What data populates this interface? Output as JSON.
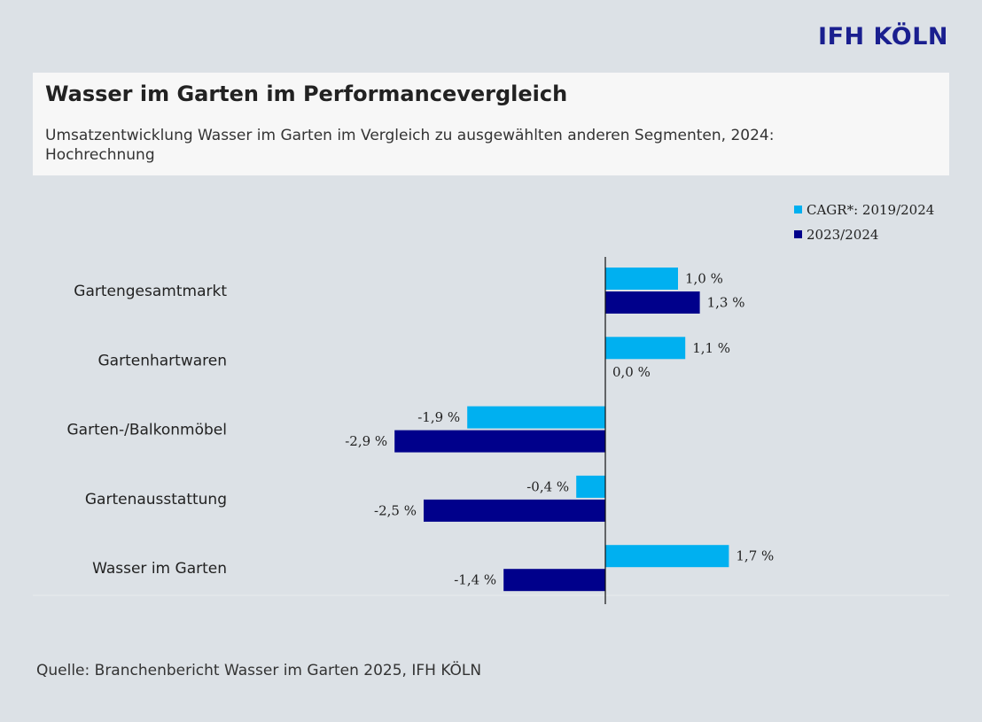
{
  "logo": "IFH KÖLN",
  "header": {
    "title": "Wasser im Garten im Performancevergleich",
    "subtitle": "Umsatzentwicklung Wasser im Garten im Vergleich zu ausgewählten anderen Segmenten, 2024: Hochrechnung"
  },
  "source": "Quelle: Branchenbericht Wasser im Garten 2025, IFH KÖLN",
  "chart_data": {
    "type": "bar",
    "orientation": "horizontal",
    "categories": [
      "Gartengesamtmarkt",
      "Gartenhartwaren",
      "Garten-/Balkonmöbel",
      "Gartenausstattung",
      "Wasser im Garten"
    ],
    "series": [
      {
        "name": "CAGR*: 2019/2024",
        "color": "#00b0f0",
        "values": [
          1.0,
          1.1,
          -1.9,
          -0.4,
          1.7
        ],
        "labels": [
          "1,0 %",
          "1,1 %",
          "-1,9 %",
          "-0,4 %",
          "1,7 %"
        ]
      },
      {
        "name": "2023/2024",
        "color": "#00008b",
        "values": [
          1.3,
          0.0,
          -2.9,
          -2.5,
          -1.4
        ],
        "labels": [
          "1,3 %",
          "0,0 %",
          "-2,9 %",
          "-2,5 %",
          "-1,4 %"
        ]
      }
    ],
    "xlim": [
      -3.0,
      1.9
    ],
    "legend_position": "top-right",
    "grid": false
  }
}
